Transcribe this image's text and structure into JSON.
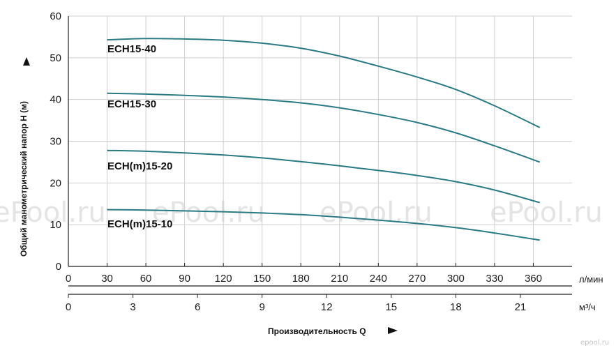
{
  "chart_data": {
    "type": "line",
    "ylabel": "Общий манометрический напор H (м)",
    "xlabel": "Производительность Q",
    "ylim": [
      0,
      60
    ],
    "y_ticks": [
      0,
      10,
      20,
      30,
      40,
      50,
      60
    ],
    "x_ticks_lmin": [
      0,
      30,
      60,
      90,
      120,
      150,
      180,
      210,
      240,
      270,
      300,
      330,
      360
    ],
    "x_unit_lmin": "л/мин",
    "x_ticks_m3h": [
      0,
      3,
      6,
      9,
      12,
      15,
      18,
      21
    ],
    "x_unit_m3h": "м³/ч",
    "grid": true,
    "series": [
      {
        "name": "ECH15-40",
        "x": [
          30,
          60,
          90,
          120,
          150,
          180,
          210,
          240,
          270,
          300,
          330,
          365
        ],
        "y": [
          54.3,
          54.6,
          54.5,
          54.2,
          53.5,
          52.3,
          50.4,
          48.0,
          45.4,
          42.4,
          38.5,
          33.3
        ]
      },
      {
        "name": "ECH15-30",
        "x": [
          30,
          60,
          90,
          120,
          150,
          180,
          210,
          240,
          270,
          300,
          330,
          365
        ],
        "y": [
          41.5,
          41.3,
          41.0,
          40.6,
          40.0,
          39.2,
          38.0,
          36.4,
          34.5,
          32.0,
          28.9,
          25.0
        ]
      },
      {
        "name": "ECH(m)15-20",
        "x": [
          30,
          60,
          90,
          120,
          150,
          180,
          210,
          240,
          270,
          300,
          330,
          365
        ],
        "y": [
          27.8,
          27.6,
          27.2,
          26.7,
          26.0,
          25.1,
          24.1,
          23.0,
          21.8,
          20.3,
          18.3,
          15.3
        ]
      },
      {
        "name": "ECH(m)15-10",
        "x": [
          30,
          60,
          90,
          120,
          150,
          180,
          210,
          240,
          270,
          300,
          330,
          365
        ],
        "y": [
          13.6,
          13.5,
          13.3,
          13.1,
          12.8,
          12.4,
          11.8,
          11.1,
          10.3,
          9.3,
          8.0,
          6.3
        ]
      }
    ],
    "line_color": "#2a7a84",
    "watermark": "ePool.ru",
    "corner_mark": "epool.ru"
  }
}
